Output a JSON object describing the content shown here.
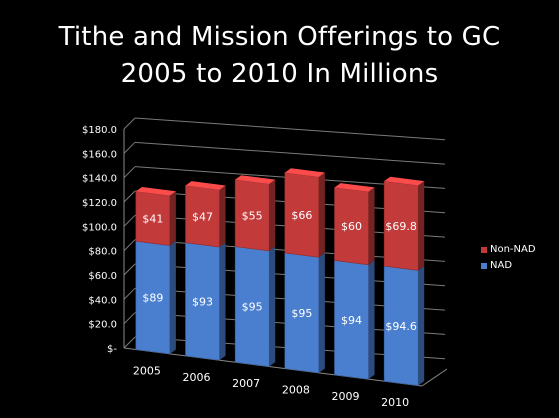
{
  "chart_data": {
    "type": "bar",
    "stacked": true,
    "three_d": true,
    "title": "Tithe and Mission Offerings to GC",
    "subtitle": "2005 to 2010 In Millions",
    "categories": [
      "2005",
      "2006",
      "2007",
      "2008",
      "2009",
      "2010"
    ],
    "series": [
      {
        "name": "NAD",
        "color": "#4a7fd0",
        "values": [
          89,
          93,
          95,
          95,
          94,
          94.6
        ],
        "labels": [
          "$89",
          "$93",
          "$95",
          "$95",
          "$94",
          "$94.6"
        ]
      },
      {
        "name": "Non-NAD",
        "color": "#c23a3a",
        "values": [
          41,
          47,
          55,
          66,
          60,
          69.8
        ],
        "labels": [
          "$41",
          "$47",
          "$55",
          "$66",
          "$60",
          "$69.8"
        ]
      }
    ],
    "yticks": [
      "$-",
      "$20.0",
      "$40.0",
      "$60.0",
      "$80.0",
      "$100.0",
      "$120.0",
      "$140.0",
      "$160.0",
      "$180.0"
    ],
    "ylim": [
      0,
      180
    ],
    "grid": true,
    "legend_position": "right",
    "background": "#000000"
  }
}
